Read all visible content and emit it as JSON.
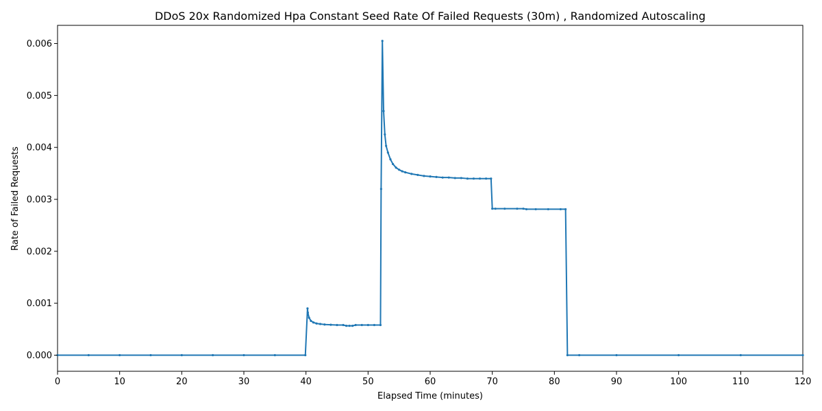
{
  "chart_data": {
    "type": "line",
    "title": "DDoS 20x Randomized Hpa Constant Seed Rate Of Failed Requests (30m) , Randomized Autoscaling",
    "xlabel": "Elapsed Time (minutes)",
    "ylabel": "Rate of Failed Requests",
    "xlim": [
      0,
      120
    ],
    "ylim": [
      -0.00031,
      0.00635
    ],
    "x_ticks": [
      0,
      10,
      20,
      30,
      40,
      50,
      60,
      70,
      80,
      90,
      100,
      110,
      120
    ],
    "x_tick_labels": [
      "0",
      "10",
      "20",
      "30",
      "40",
      "50",
      "60",
      "70",
      "80",
      "90",
      "100",
      "110",
      "120"
    ],
    "y_ticks": [
      0,
      0.001,
      0.002,
      0.003,
      0.004,
      0.005,
      0.006
    ],
    "y_tick_labels": [
      "0.000",
      "0.001",
      "0.002",
      "0.003",
      "0.004",
      "0.005",
      "0.006"
    ],
    "grid": false,
    "line_color": "#1f77b4",
    "series": [
      {
        "x": [
          0,
          5,
          10,
          15,
          20,
          25,
          30,
          35,
          39.9,
          40.25,
          40.3,
          40.5,
          40.8,
          41.2,
          41.7,
          42.3,
          43,
          44,
          45,
          46,
          46.5,
          47,
          47.5,
          48,
          49,
          50,
          51,
          52,
          52.1,
          52.3,
          52.5,
          52.7,
          52.9,
          53.2,
          53.6,
          54,
          54.5,
          55,
          55.5,
          56,
          57,
          58,
          59,
          60,
          61,
          62,
          63,
          64,
          65,
          66,
          67,
          68,
          69,
          69.8,
          70.0,
          70.5,
          72,
          74,
          75,
          75.5,
          77,
          79,
          81,
          81.8,
          82.1,
          84,
          90,
          100,
          110,
          120
        ],
        "y": [
          0,
          0,
          0,
          0,
          0,
          0,
          0,
          0,
          0,
          0.0009,
          0.00082,
          0.00072,
          0.00066,
          0.00063,
          0.00061,
          0.0006,
          0.00059,
          0.000585,
          0.00058,
          0.00058,
          0.000565,
          0.000565,
          0.000565,
          0.00058,
          0.00058,
          0.00058,
          0.00058,
          0.00058,
          0.0032,
          0.00605,
          0.0047,
          0.00425,
          0.00403,
          0.0039,
          0.00377,
          0.00368,
          0.00361,
          0.00357,
          0.00354,
          0.00352,
          0.00349,
          0.00347,
          0.00345,
          0.00344,
          0.00343,
          0.00342,
          0.00342,
          0.00341,
          0.00341,
          0.0034,
          0.0034,
          0.0034,
          0.0034,
          0.0034,
          0.00282,
          0.00282,
          0.00282,
          0.00282,
          0.00282,
          0.00281,
          0.00281,
          0.00281,
          0.00281,
          0.00281,
          0,
          0,
          0,
          0,
          0,
          0
        ]
      }
    ]
  }
}
